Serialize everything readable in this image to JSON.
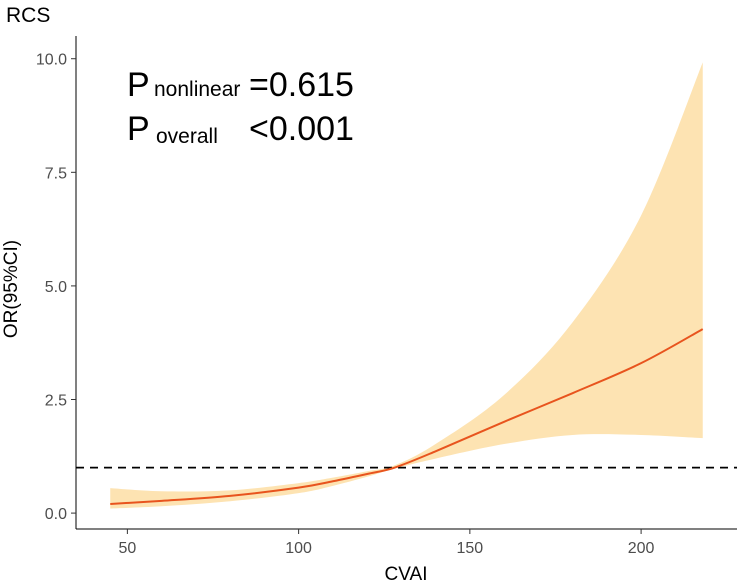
{
  "chart_data": {
    "type": "line",
    "title": "RCS",
    "xlabel": "CVAI",
    "ylabel": "OR(95%CI)",
    "xlim": [
      35,
      228
    ],
    "ylim": [
      -0.35,
      10.5
    ],
    "xticks": [
      50,
      100,
      150,
      200
    ],
    "yticks": [
      0.0,
      2.5,
      5.0,
      7.5,
      10.0
    ],
    "ytick_labels": [
      "0.0",
      "2.5",
      "5.0",
      "7.5",
      "10.0"
    ],
    "reference_line": {
      "y": 1.0,
      "style": "dashed",
      "color": "#000000"
    },
    "grid": false,
    "series": [
      {
        "x": [
          45,
          60,
          80,
          100,
          110,
          120,
          128,
          140,
          160,
          180,
          200,
          218
        ],
        "y": [
          0.2,
          0.27,
          0.38,
          0.56,
          0.7,
          0.86,
          1.0,
          1.36,
          2.01,
          2.64,
          3.3,
          4.05
        ],
        "lower": [
          0.1,
          0.15,
          0.26,
          0.44,
          0.6,
          0.8,
          0.98,
          1.2,
          1.52,
          1.72,
          1.72,
          1.65
        ],
        "upper": [
          0.55,
          0.48,
          0.5,
          0.66,
          0.78,
          0.92,
          1.05,
          1.52,
          2.6,
          4.2,
          6.55,
          9.92
        ],
        "line_color": "#E8541E",
        "band_color": "#FDE3B2"
      }
    ],
    "annotations": {
      "p_nonlinear_label": "P",
      "p_nonlinear_sub": "nonlinear",
      "p_nonlinear_value": "=0.615",
      "p_overall_label": "P",
      "p_overall_sub": "overall",
      "p_overall_value": "<0.001"
    }
  }
}
